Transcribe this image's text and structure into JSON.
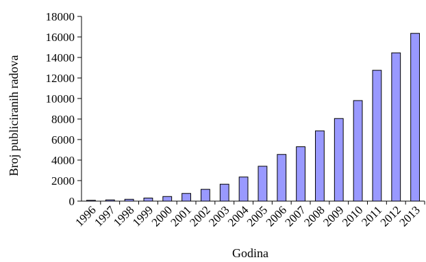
{
  "chart_data": {
    "type": "bar",
    "title": "",
    "xlabel": "Godina",
    "ylabel": "Broj publiciranih radova",
    "categories": [
      "1996",
      "1997",
      "1998",
      "1999",
      "2000",
      "2001",
      "2002",
      "2003",
      "2004",
      "2005",
      "2006",
      "2007",
      "2008",
      "2009",
      "2010",
      "2011",
      "2012",
      "2013"
    ],
    "values": [
      80,
      120,
      180,
      300,
      450,
      750,
      1150,
      1650,
      2350,
      3400,
      4550,
      5300,
      6850,
      8050,
      9800,
      12750,
      14450,
      16350
    ],
    "ylim": [
      0,
      18000
    ],
    "yticks": [
      0,
      2000,
      4000,
      6000,
      8000,
      10000,
      12000,
      14000,
      16000,
      18000
    ],
    "grid": false,
    "legend": "none",
    "colors": {
      "bar_fill": "#9999ff",
      "bar_stroke": "#000000",
      "axis": "#000000"
    }
  }
}
